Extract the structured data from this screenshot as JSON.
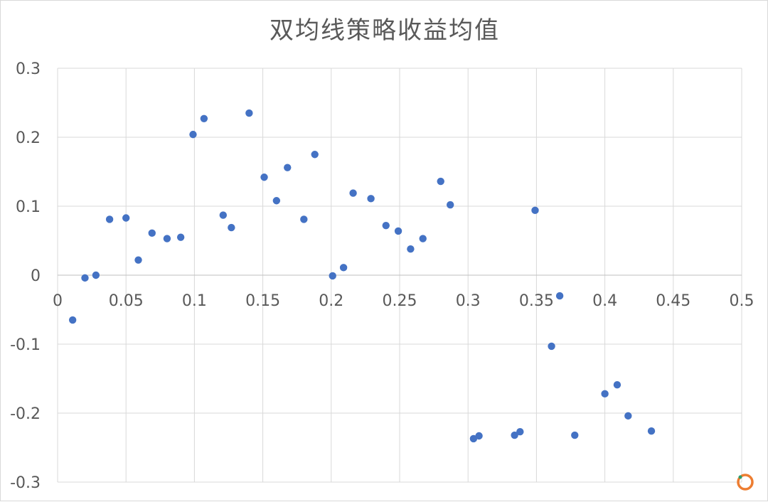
{
  "chart_data": {
    "type": "scatter",
    "title": "双均线策略收益均值",
    "xlabel": "",
    "ylabel": "",
    "xlim": [
      0,
      0.5
    ],
    "ylim": [
      -0.3,
      0.3
    ],
    "x_ticks": [
      "0",
      "0.05",
      "0.1",
      "0.15",
      "0.2",
      "0.25",
      "0.3",
      "0.35",
      "0.4",
      "0.45",
      "0.5"
    ],
    "y_ticks": [
      "0.3",
      "0.2",
      "0.1",
      "0",
      "-0.1",
      "-0.2",
      "-0.3"
    ],
    "x_tick_values": [
      0,
      0.05,
      0.1,
      0.15,
      0.2,
      0.25,
      0.3,
      0.35,
      0.4,
      0.45,
      0.5
    ],
    "y_tick_values": [
      0.3,
      0.2,
      0.1,
      0,
      -0.1,
      -0.2,
      -0.3
    ],
    "grid": true,
    "series": [
      {
        "color": "#4472c4",
        "x": [
          0.011,
          0.02,
          0.028,
          0.038,
          0.05,
          0.059,
          0.069,
          0.08,
          0.09,
          0.099,
          0.107,
          0.121,
          0.127,
          0.14,
          0.151,
          0.16,
          0.168,
          0.18,
          0.188,
          0.201,
          0.209,
          0.216,
          0.229,
          0.24,
          0.249,
          0.258,
          0.267,
          0.28,
          0.287,
          0.304,
          0.308,
          0.334,
          0.338,
          0.349,
          0.367,
          0.361,
          0.378,
          0.4,
          0.409,
          0.417,
          0.434
        ],
        "y": [
          -0.065,
          -0.004,
          0.0,
          0.081,
          0.083,
          0.022,
          0.061,
          0.053,
          0.055,
          0.204,
          0.227,
          0.087,
          0.069,
          0.235,
          0.142,
          0.108,
          0.156,
          0.081,
          0.175,
          -0.001,
          0.011,
          0.119,
          0.111,
          0.072,
          0.064,
          0.038,
          0.053,
          0.136,
          0.102,
          -0.237,
          -0.233,
          -0.232,
          -0.227,
          0.094,
          -0.03,
          -0.103,
          -0.232,
          -0.172,
          -0.159,
          -0.204,
          -0.226
        ]
      }
    ]
  },
  "colors": {
    "point": "#4472c4",
    "grid": "#d9d9d9",
    "text": "#595959",
    "marker_ring": "#ed7d31",
    "marker_dot": "#2e9e6b"
  }
}
